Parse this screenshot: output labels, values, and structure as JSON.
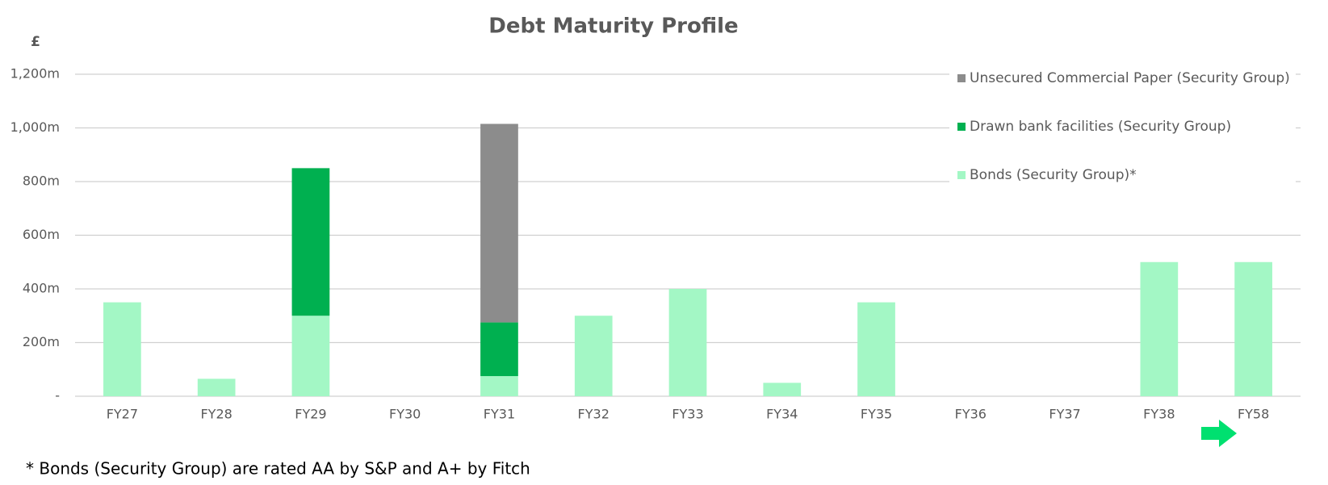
{
  "chart_data": {
    "type": "stacked_bar",
    "title": "Debt Maturity Profile",
    "y_label": "£",
    "categories": [
      "FY27",
      "FY28",
      "FY29",
      "FY30",
      "FY31",
      "FY32",
      "FY33",
      "FY34",
      "FY35",
      "FY36",
      "FY37",
      "FY38",
      "FY58"
    ],
    "series": [
      {
        "name": "Bonds (Security Group)*",
        "color": "#a3f7c5",
        "values": [
          350,
          65,
          300,
          0,
          75,
          300,
          400,
          50,
          350,
          0,
          0,
          500,
          500
        ]
      },
      {
        "name": "Drawn bank facilities (Security Group)",
        "color": "#00b050",
        "values": [
          0,
          0,
          550,
          0,
          200,
          0,
          0,
          0,
          0,
          0,
          0,
          0,
          0
        ]
      },
      {
        "name": "Unsecured Commercial Paper (Security Group)",
        "color": "#8c8c8c",
        "values": [
          0,
          0,
          0,
          0,
          740,
          0,
          0,
          0,
          0,
          0,
          0,
          0,
          0
        ]
      }
    ],
    "ylim": [
      0,
      1200
    ],
    "yticks": [
      {
        "value": 0,
        "label": "-"
      },
      {
        "value": 200,
        "label": "200m"
      },
      {
        "value": 400,
        "label": "400m"
      },
      {
        "value": 600,
        "label": "600m"
      },
      {
        "value": 800,
        "label": "800m"
      },
      {
        "value": 1000,
        "label": "1,000m"
      },
      {
        "value": 1200,
        "label": "1,200m"
      }
    ],
    "grid": true,
    "legend": "top-right",
    "footnote": "* Bonds (Security Group) are rated AA by S&P and A+ by Fitch"
  }
}
